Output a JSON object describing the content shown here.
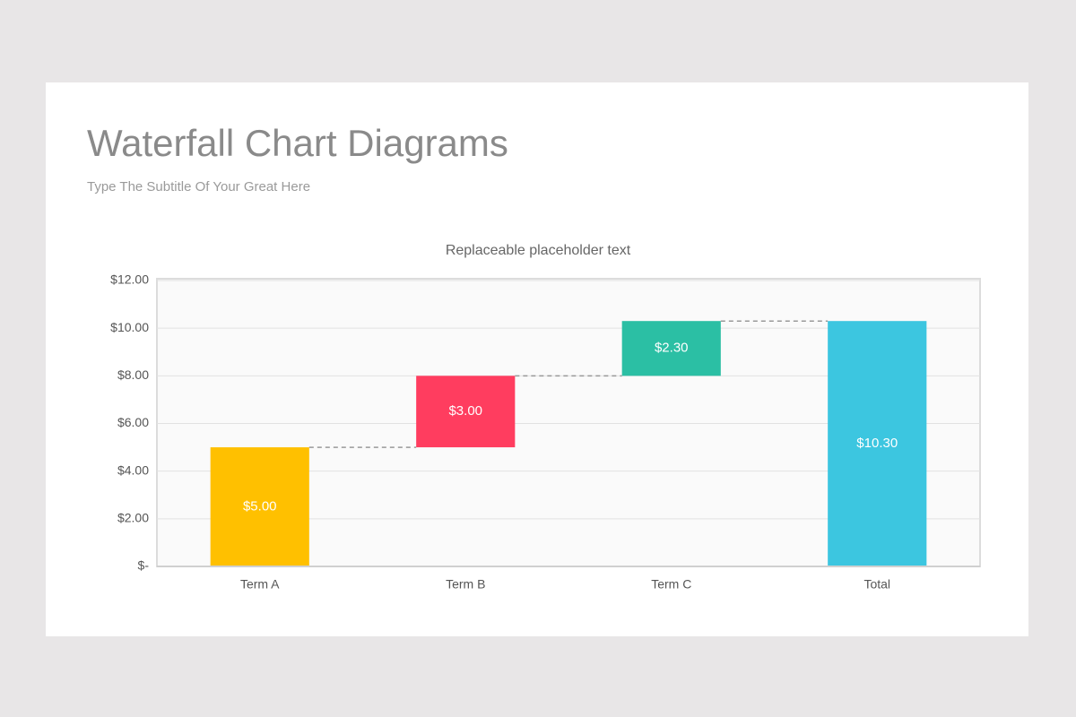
{
  "title": "Waterfall Chart Diagrams",
  "subtitle": "Type The Subtitle Of Your Great Here",
  "chart_data": {
    "type": "waterfall",
    "title": "Replaceable placeholder text",
    "categories": [
      "Term A",
      "Term B",
      "Term C",
      "Total"
    ],
    "values": [
      5,
      3,
      2.3,
      10.3
    ],
    "value_labels": [
      "$5.00",
      "$3.00",
      "$2.30",
      "$10.30"
    ],
    "colors": [
      "#ffc000",
      "#ff3d5f",
      "#2bbfa4",
      "#3cc6e0"
    ],
    "ylim": [
      0,
      12
    ],
    "yticks": [
      {
        "value": 0,
        "label": "$-"
      },
      {
        "value": 2,
        "label": "$2.00"
      },
      {
        "value": 4,
        "label": "$4.00"
      },
      {
        "value": 6,
        "label": "$6.00"
      },
      {
        "value": 8,
        "label": "$8.00"
      },
      {
        "value": 10,
        "label": "$10.00"
      },
      {
        "value": 12,
        "label": "$12.00"
      }
    ],
    "grid": true
  }
}
